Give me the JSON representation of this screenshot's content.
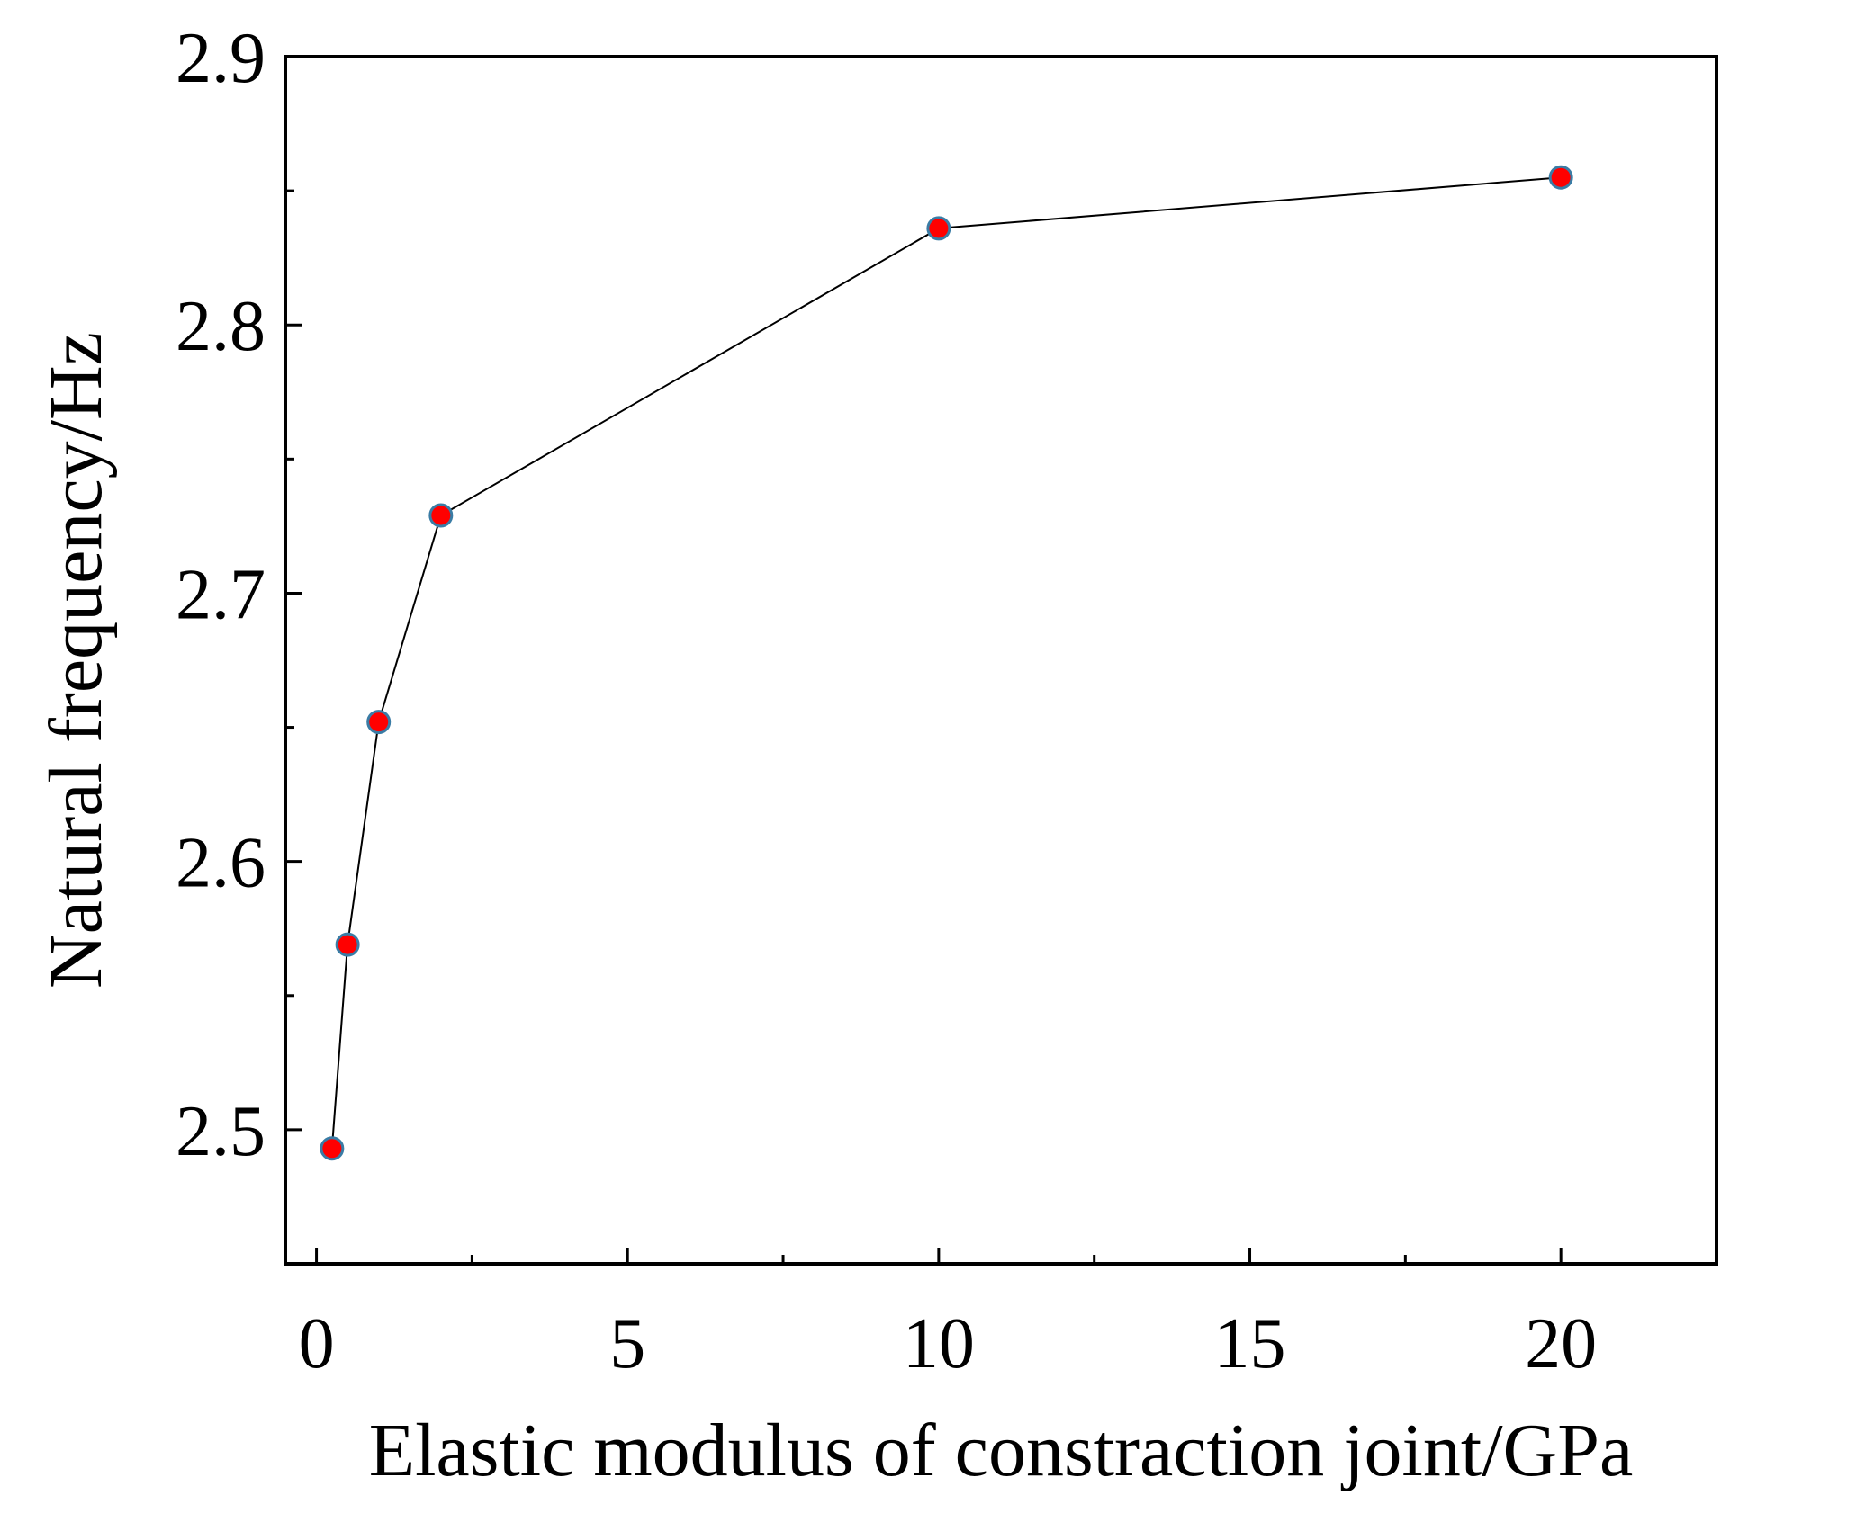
{
  "chart_data": {
    "type": "line",
    "xlabel": "Elastic modulus of constraction joint/GPa",
    "ylabel": "Natural frequency/Hz",
    "xlim": [
      -0.5,
      22.5
    ],
    "ylim": [
      2.45,
      2.9
    ],
    "x_ticks": [
      0,
      5,
      10,
      15,
      20
    ],
    "x_minor_ticks": [
      2.5,
      7.5,
      12.5,
      17.5
    ],
    "y_ticks": [
      2.5,
      2.6,
      2.7,
      2.8,
      2.9
    ],
    "y_minor_ticks": [
      2.55,
      2.65,
      2.75,
      2.85
    ],
    "y_tick_format": 1,
    "grid": false,
    "legend": "none",
    "marker_color": "#ff0000",
    "marker_edge_color": "#3a7ca5",
    "line_color": "#000000",
    "series": [
      {
        "x": [
          0.25,
          0.5,
          1,
          2,
          10,
          20
        ],
        "y": [
          2.493,
          2.569,
          2.652,
          2.729,
          2.836,
          2.855
        ]
      }
    ]
  }
}
